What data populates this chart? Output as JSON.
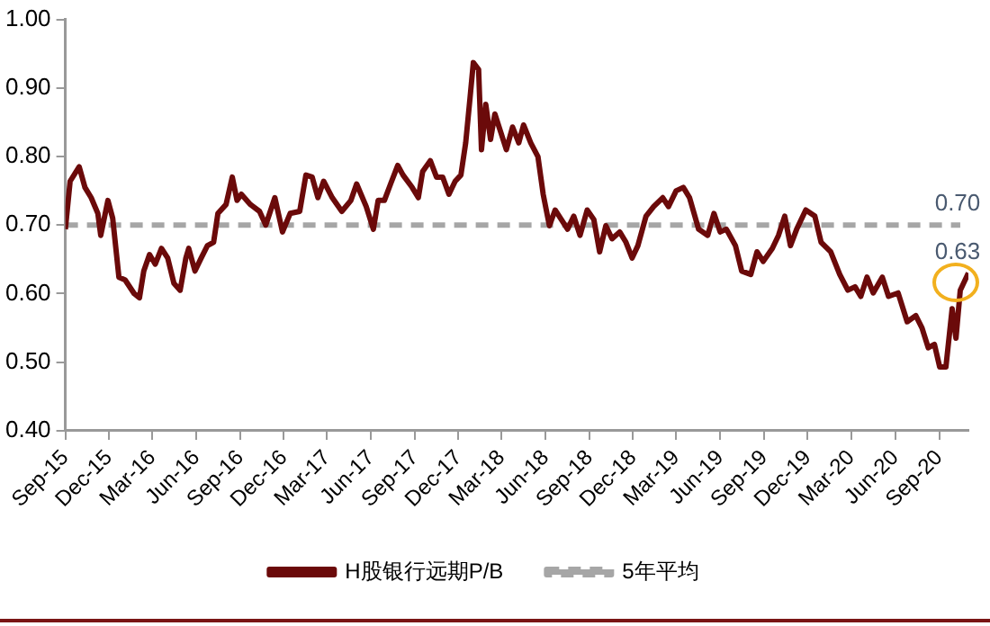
{
  "chart_data": {
    "type": "line",
    "grid": false,
    "legend": "bottom",
    "marker": "none",
    "xlim": [
      "2015-09-01",
      "2020-11-01"
    ],
    "xticks": [
      {
        "value": "2015-09-01",
        "label": "Sep-15"
      },
      {
        "value": "2015-12-01",
        "label": "Dec-15"
      },
      {
        "value": "2016-03-01",
        "label": "Mar-16"
      },
      {
        "value": "2016-06-01",
        "label": "Jun-16"
      },
      {
        "value": "2016-09-01",
        "label": "Sep-16"
      },
      {
        "value": "2016-12-01",
        "label": "Dec-16"
      },
      {
        "value": "2017-03-01",
        "label": "Mar-17"
      },
      {
        "value": "2017-06-01",
        "label": "Jun-17"
      },
      {
        "value": "2017-09-01",
        "label": "Sep-17"
      },
      {
        "value": "2017-12-01",
        "label": "Dec-17"
      },
      {
        "value": "2018-03-01",
        "label": "Mar-18"
      },
      {
        "value": "2018-06-01",
        "label": "Jun-18"
      },
      {
        "value": "2018-09-01",
        "label": "Sep-18"
      },
      {
        "value": "2018-12-01",
        "label": "Dec-18"
      },
      {
        "value": "2019-03-01",
        "label": "Mar-19"
      },
      {
        "value": "2019-06-01",
        "label": "Jun-19"
      },
      {
        "value": "2019-09-01",
        "label": "Sep-19"
      },
      {
        "value": "2019-12-01",
        "label": "Dec-19"
      },
      {
        "value": "2020-03-01",
        "label": "Mar-20"
      },
      {
        "value": "2020-06-01",
        "label": "Jun-20"
      },
      {
        "value": "2020-09-01",
        "label": "Sep-20"
      }
    ],
    "ylim": [
      0.4,
      1.0
    ],
    "yticks": [
      {
        "value": 0.4,
        "label": "0.40"
      },
      {
        "value": 0.5,
        "label": "0.50"
      },
      {
        "value": 0.6,
        "label": "0.60"
      },
      {
        "value": 0.7,
        "label": "0.70"
      },
      {
        "value": 0.8,
        "label": "0.80"
      },
      {
        "value": 0.9,
        "label": "0.90"
      },
      {
        "value": 1.0,
        "label": "1.00"
      }
    ],
    "series": [
      {
        "name": "H股银行远期P/B",
        "color": "#6b0a0a",
        "line_style": "solid",
        "x": [
          "2015-09-01",
          "2015-09-11",
          "2015-09-30",
          "2015-10-12",
          "2015-10-25",
          "2015-11-08",
          "2015-11-14",
          "2015-11-29",
          "2015-12-09",
          "2015-12-22",
          "2016-01-04",
          "2016-01-23",
          "2016-02-03",
          "2016-02-12",
          "2016-02-24",
          "2016-03-07",
          "2016-03-20",
          "2016-04-02",
          "2016-04-15",
          "2016-04-28",
          "2016-05-10",
          "2016-05-16",
          "2016-05-29",
          "2016-06-11",
          "2016-06-24",
          "2016-07-07",
          "2016-07-16",
          "2016-08-02",
          "2016-08-15",
          "2016-08-25",
          "2016-09-03",
          "2016-09-22",
          "2016-10-11",
          "2016-10-24",
          "2016-11-12",
          "2016-11-28",
          "2016-12-14",
          "2017-01-03",
          "2017-01-16",
          "2017-01-29",
          "2017-02-10",
          "2017-02-22",
          "2017-03-12",
          "2017-04-01",
          "2017-04-20",
          "2017-05-02",
          "2017-05-22",
          "2017-06-06",
          "2017-06-16",
          "2017-06-29",
          "2017-07-12",
          "2017-07-27",
          "2017-08-07",
          "2017-08-26",
          "2017-09-08",
          "2017-09-17",
          "2017-10-03",
          "2017-10-16",
          "2017-10-29",
          "2017-11-11",
          "2017-11-24",
          "2017-12-06",
          "2017-12-16",
          "2017-12-25",
          "2018-01-01",
          "2018-01-12",
          "2018-01-18",
          "2018-01-27",
          "2018-02-06",
          "2018-02-15",
          "2018-02-28",
          "2018-03-11",
          "2018-03-24",
          "2018-04-06",
          "2018-04-16",
          "2018-05-01",
          "2018-05-16",
          "2018-05-27",
          "2018-06-09",
          "2018-06-21",
          "2018-07-04",
          "2018-07-17",
          "2018-07-30",
          "2018-08-12",
          "2018-08-27",
          "2018-09-10",
          "2018-09-22",
          "2018-10-05",
          "2018-10-18",
          "2018-11-03",
          "2018-11-16",
          "2018-11-29",
          "2018-12-11",
          "2018-12-28",
          "2019-01-13",
          "2019-02-01",
          "2019-02-13",
          "2019-03-01",
          "2019-03-16",
          "2019-03-29",
          "2019-04-17",
          "2019-05-06",
          "2019-05-19",
          "2019-06-01",
          "2019-06-14",
          "2019-07-03",
          "2019-07-16",
          "2019-08-04",
          "2019-08-17",
          "2019-08-30",
          "2019-09-18",
          "2019-10-01",
          "2019-10-14",
          "2019-10-26",
          "2019-11-08",
          "2019-11-27",
          "2019-12-16",
          "2019-12-29",
          "2020-01-18",
          "2020-02-06",
          "2020-02-23",
          "2020-03-09",
          "2020-03-21",
          "2020-04-03",
          "2020-04-16",
          "2020-05-05",
          "2020-05-18",
          "2020-06-07",
          "2020-06-26",
          "2020-07-14",
          "2020-07-27",
          "2020-08-09",
          "2020-08-22",
          "2020-09-02",
          "2020-09-15",
          "2020-09-28",
          "2020-10-06",
          "2020-10-15",
          "2020-11-01"
        ],
        "values": [
          0.694,
          0.764,
          0.785,
          0.755,
          0.74,
          0.717,
          0.685,
          0.736,
          0.71,
          0.624,
          0.62,
          0.6,
          0.594,
          0.633,
          0.657,
          0.643,
          0.666,
          0.652,
          0.615,
          0.605,
          0.652,
          0.666,
          0.633,
          0.652,
          0.67,
          0.675,
          0.717,
          0.73,
          0.77,
          0.736,
          0.745,
          0.73,
          0.72,
          0.7,
          0.74,
          0.69,
          0.717,
          0.72,
          0.773,
          0.77,
          0.74,
          0.764,
          0.74,
          0.72,
          0.736,
          0.76,
          0.727,
          0.694,
          0.736,
          0.736,
          0.76,
          0.787,
          0.773,
          0.755,
          0.74,
          0.778,
          0.794,
          0.77,
          0.77,
          0.745,
          0.764,
          0.773,
          0.82,
          0.885,
          0.937,
          0.927,
          0.81,
          0.876,
          0.825,
          0.862,
          0.834,
          0.81,
          0.843,
          0.82,
          0.846,
          0.82,
          0.8,
          0.745,
          0.699,
          0.722,
          0.708,
          0.694,
          0.713,
          0.685,
          0.722,
          0.708,
          0.661,
          0.699,
          0.68,
          0.69,
          0.675,
          0.652,
          0.67,
          0.713,
          0.727,
          0.74,
          0.727,
          0.75,
          0.755,
          0.74,
          0.694,
          0.685,
          0.717,
          0.69,
          0.694,
          0.67,
          0.633,
          0.628,
          0.661,
          0.647,
          0.666,
          0.685,
          0.713,
          0.67,
          0.694,
          0.722,
          0.713,
          0.675,
          0.661,
          0.628,
          0.605,
          0.61,
          0.596,
          0.624,
          0.601,
          0.624,
          0.596,
          0.601,
          0.559,
          0.568,
          0.55,
          0.521,
          0.526,
          0.493,
          0.493,
          0.578,
          0.535,
          0.605,
          0.63
        ]
      },
      {
        "name": "5年平均",
        "color": "#a6a6a6",
        "line_style": "dashed",
        "x": [
          "2015-09-01",
          "2020-10-15"
        ],
        "values": [
          0.7,
          0.7
        ]
      }
    ],
    "annotations": [
      {
        "text": "0.70",
        "x": "2020-11-01",
        "y": 0.7
      },
      {
        "text": "0.63",
        "x": "2020-11-01",
        "y": 0.63
      }
    ]
  }
}
